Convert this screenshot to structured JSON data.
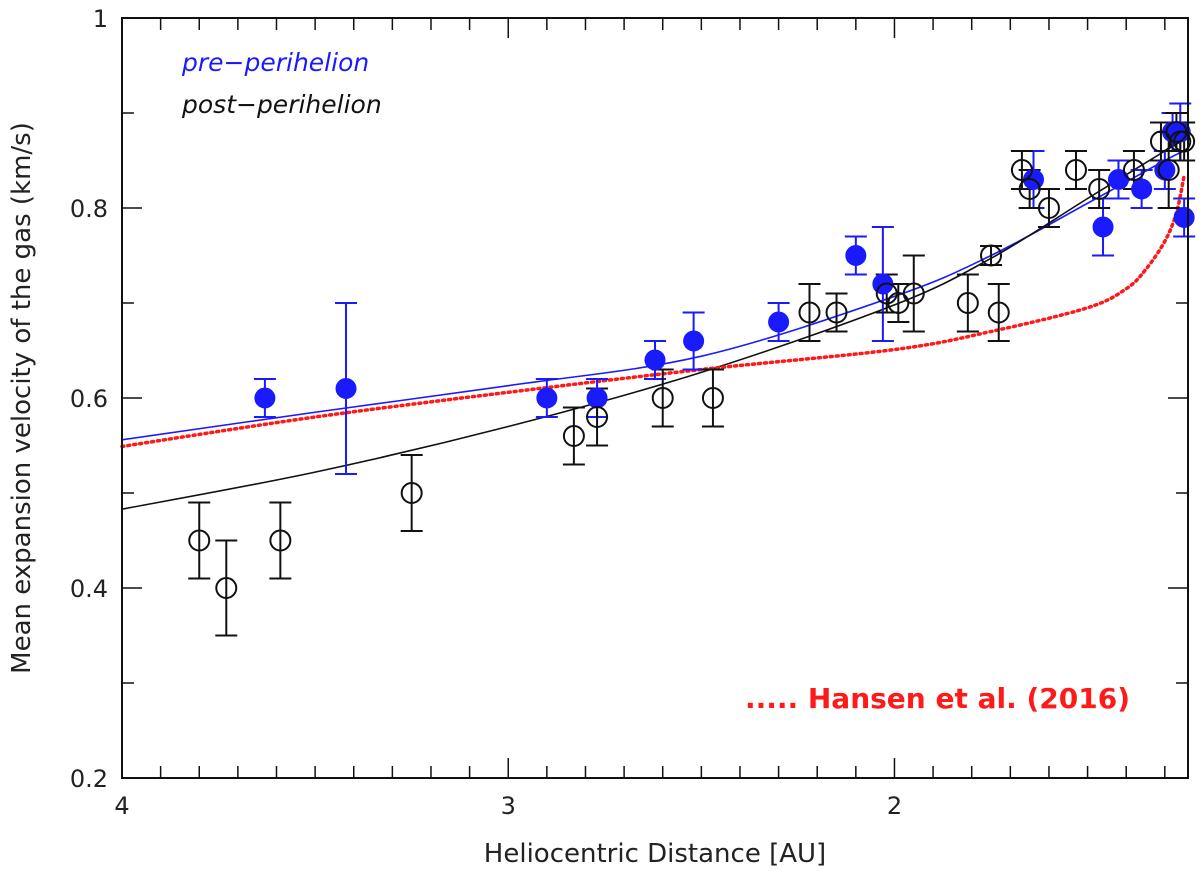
{
  "chart_data": {
    "type": "scatter",
    "title": "",
    "xlabel": "Heliocentric Distance [AU]",
    "ylabel": "Mean expansion velocity of the gas (km/s)",
    "x_reversed": true,
    "xlim": [
      4.0,
      1.24
    ],
    "ylim": [
      0.2,
      1.0
    ],
    "xticks": [
      4,
      3,
      2
    ],
    "yticks": [
      0.2,
      0.4,
      0.6,
      0.8,
      1.0
    ],
    "ytick_labels": [
      "0.2",
      "0.4",
      "0.6",
      "0.8",
      "1"
    ],
    "legend": {
      "placement": "top-left",
      "entries": [
        {
          "label": "pre−perihelion",
          "color": "#1a1aff"
        },
        {
          "label": "post−perihelion",
          "color": "#111111"
        }
      ]
    },
    "annotation": {
      "text": "..... Hansen et al. (2016)",
      "color": "#ff1a1a"
    },
    "series": [
      {
        "name": "pre−perihelion",
        "marker": "filled-circle",
        "color": "#1a1aff",
        "points": [
          {
            "x": 3.63,
            "y": 0.6,
            "err": 0.02
          },
          {
            "x": 3.42,
            "y": 0.61,
            "err": 0.09
          },
          {
            "x": 2.9,
            "y": 0.6,
            "err": 0.02
          },
          {
            "x": 2.77,
            "y": 0.6,
            "err": 0.02
          },
          {
            "x": 2.62,
            "y": 0.64,
            "err": 0.02
          },
          {
            "x": 2.52,
            "y": 0.66,
            "err": 0.03
          },
          {
            "x": 2.3,
            "y": 0.68,
            "err": 0.02
          },
          {
            "x": 2.1,
            "y": 0.75,
            "err": 0.02
          },
          {
            "x": 2.03,
            "y": 0.72,
            "err": 0.06
          },
          {
            "x": 1.64,
            "y": 0.83,
            "err": 0.03
          },
          {
            "x": 1.46,
            "y": 0.78,
            "err": 0.03
          },
          {
            "x": 1.42,
            "y": 0.83,
            "err": 0.02
          },
          {
            "x": 1.36,
            "y": 0.82,
            "err": 0.02
          },
          {
            "x": 1.3,
            "y": 0.84,
            "err": 0.02
          },
          {
            "x": 1.28,
            "y": 0.88,
            "err": 0.02
          },
          {
            "x": 1.26,
            "y": 0.88,
            "err": 0.03
          },
          {
            "x": 1.25,
            "y": 0.79,
            "err": 0.02
          }
        ]
      },
      {
        "name": "post−perihelion",
        "marker": "open-circle",
        "color": "#111111",
        "points": [
          {
            "x": 3.8,
            "y": 0.45,
            "err": 0.04
          },
          {
            "x": 3.73,
            "y": 0.4,
            "err": 0.05
          },
          {
            "x": 3.59,
            "y": 0.45,
            "err": 0.04
          },
          {
            "x": 3.25,
            "y": 0.5,
            "err": 0.04
          },
          {
            "x": 2.83,
            "y": 0.56,
            "err": 0.03
          },
          {
            "x": 2.77,
            "y": 0.58,
            "err": 0.03
          },
          {
            "x": 2.6,
            "y": 0.6,
            "err": 0.03
          },
          {
            "x": 2.47,
            "y": 0.6,
            "err": 0.03
          },
          {
            "x": 2.22,
            "y": 0.69,
            "err": 0.03
          },
          {
            "x": 2.15,
            "y": 0.69,
            "err": 0.02
          },
          {
            "x": 2.02,
            "y": 0.71,
            "err": 0.02
          },
          {
            "x": 1.99,
            "y": 0.7,
            "err": 0.02
          },
          {
            "x": 1.95,
            "y": 0.71,
            "err": 0.04
          },
          {
            "x": 1.81,
            "y": 0.7,
            "err": 0.03
          },
          {
            "x": 1.75,
            "y": 0.75,
            "err": 0.01
          },
          {
            "x": 1.73,
            "y": 0.69,
            "err": 0.03
          },
          {
            "x": 1.67,
            "y": 0.84,
            "err": 0.02
          },
          {
            "x": 1.65,
            "y": 0.82,
            "err": 0.02
          },
          {
            "x": 1.6,
            "y": 0.8,
            "err": 0.02
          },
          {
            "x": 1.53,
            "y": 0.84,
            "err": 0.02
          },
          {
            "x": 1.47,
            "y": 0.82,
            "err": 0.02
          },
          {
            "x": 1.38,
            "y": 0.84,
            "err": 0.02
          },
          {
            "x": 1.31,
            "y": 0.87,
            "err": 0.02
          },
          {
            "x": 1.29,
            "y": 0.84,
            "err": 0.04
          },
          {
            "x": 1.27,
            "y": 0.88,
            "err": 0.02
          },
          {
            "x": 1.26,
            "y": 0.87,
            "err": 0.02
          },
          {
            "x": 1.25,
            "y": 0.87,
            "err": 0.02
          }
        ]
      }
    ],
    "fits": [
      {
        "series": "pre−perihelion",
        "color": "#1a1aff",
        "style": "solid",
        "points": [
          [
            4.0,
            0.556
          ],
          [
            3.5,
            0.585
          ],
          [
            3.0,
            0.613
          ],
          [
            2.5,
            0.644
          ],
          [
            2.0,
            0.707
          ],
          [
            1.75,
            0.75
          ],
          [
            1.5,
            0.805
          ],
          [
            1.3,
            0.85
          ],
          [
            1.25,
            0.86
          ]
        ]
      },
      {
        "series": "post−perihelion",
        "color": "#111111",
        "style": "solid",
        "points": [
          [
            4.0,
            0.483
          ],
          [
            3.5,
            0.522
          ],
          [
            3.0,
            0.57
          ],
          [
            2.5,
            0.627
          ],
          [
            2.0,
            0.698
          ],
          [
            1.75,
            0.747
          ],
          [
            1.5,
            0.81
          ],
          [
            1.3,
            0.86
          ],
          [
            1.25,
            0.872
          ]
        ]
      },
      {
        "series": "..... Hansen et al. (2016)",
        "color": "#ff1a1a",
        "style": "dotted",
        "points": [
          [
            4.0,
            0.549
          ],
          [
            3.5,
            0.58
          ],
          [
            3.0,
            0.606
          ],
          [
            2.5,
            0.63
          ],
          [
            2.0,
            0.651
          ],
          [
            1.75,
            0.67
          ],
          [
            1.5,
            0.695
          ],
          [
            1.4,
            0.715
          ],
          [
            1.35,
            0.735
          ],
          [
            1.3,
            0.765
          ],
          [
            1.27,
            0.795
          ],
          [
            1.25,
            0.834
          ]
        ]
      }
    ]
  }
}
